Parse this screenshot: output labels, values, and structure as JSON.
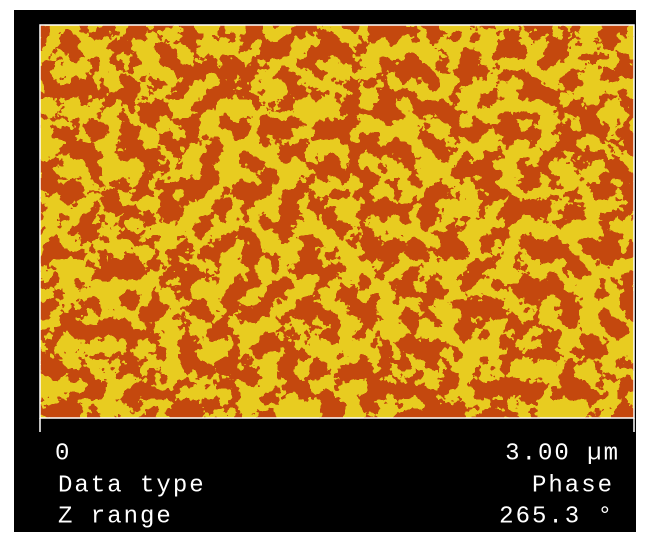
{
  "scale": {
    "min_label": "0",
    "max_label": "3.00 µm"
  },
  "rows": [
    {
      "label": "Data type",
      "value": "Phase"
    },
    {
      "label": "Z range",
      "value": "265.3 °"
    }
  ]
}
